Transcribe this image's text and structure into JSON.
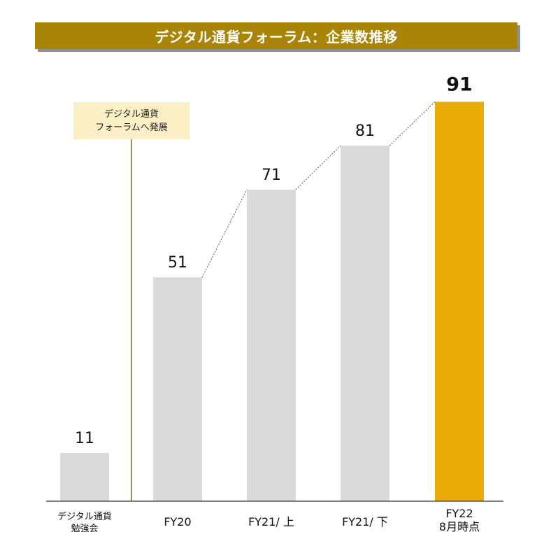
{
  "title": "デジタル通貨フォーラム：企業数推移",
  "annotation": {
    "line1": "デジタル通貨",
    "line2": "フォーラムへ発展"
  },
  "x_labels": [
    {
      "line1": "デジタル通貨",
      "line2": "勉強会"
    },
    {
      "line1": "FY20",
      "line2": ""
    },
    {
      "line1": "FY21/ 上",
      "line2": ""
    },
    {
      "line1": "FY21/ 下",
      "line2": ""
    },
    {
      "line1": "FY22",
      "line2": "8月時点"
    }
  ],
  "colors": {
    "banner": "#a88407",
    "bar": "#d9d9d9",
    "highlight": "#e9ab06",
    "note_bg": "#fbefc6",
    "divider": "#7a6a2a"
  },
  "chart_data": {
    "type": "bar",
    "title": "デジタル通貨フォーラム：企業数推移",
    "categories": [
      "デジタル通貨勉強会",
      "FY20",
      "FY21/ 上",
      "FY21/ 下",
      "FY22 8月時点"
    ],
    "values": [
      11,
      51,
      71,
      81,
      91
    ],
    "data_labels": [
      "11",
      "51",
      "71",
      "81",
      "91"
    ],
    "highlight_index": 4,
    "connector_lines": "dotted",
    "ylim": [
      0,
      100
    ],
    "grid": false,
    "legend": "none"
  }
}
